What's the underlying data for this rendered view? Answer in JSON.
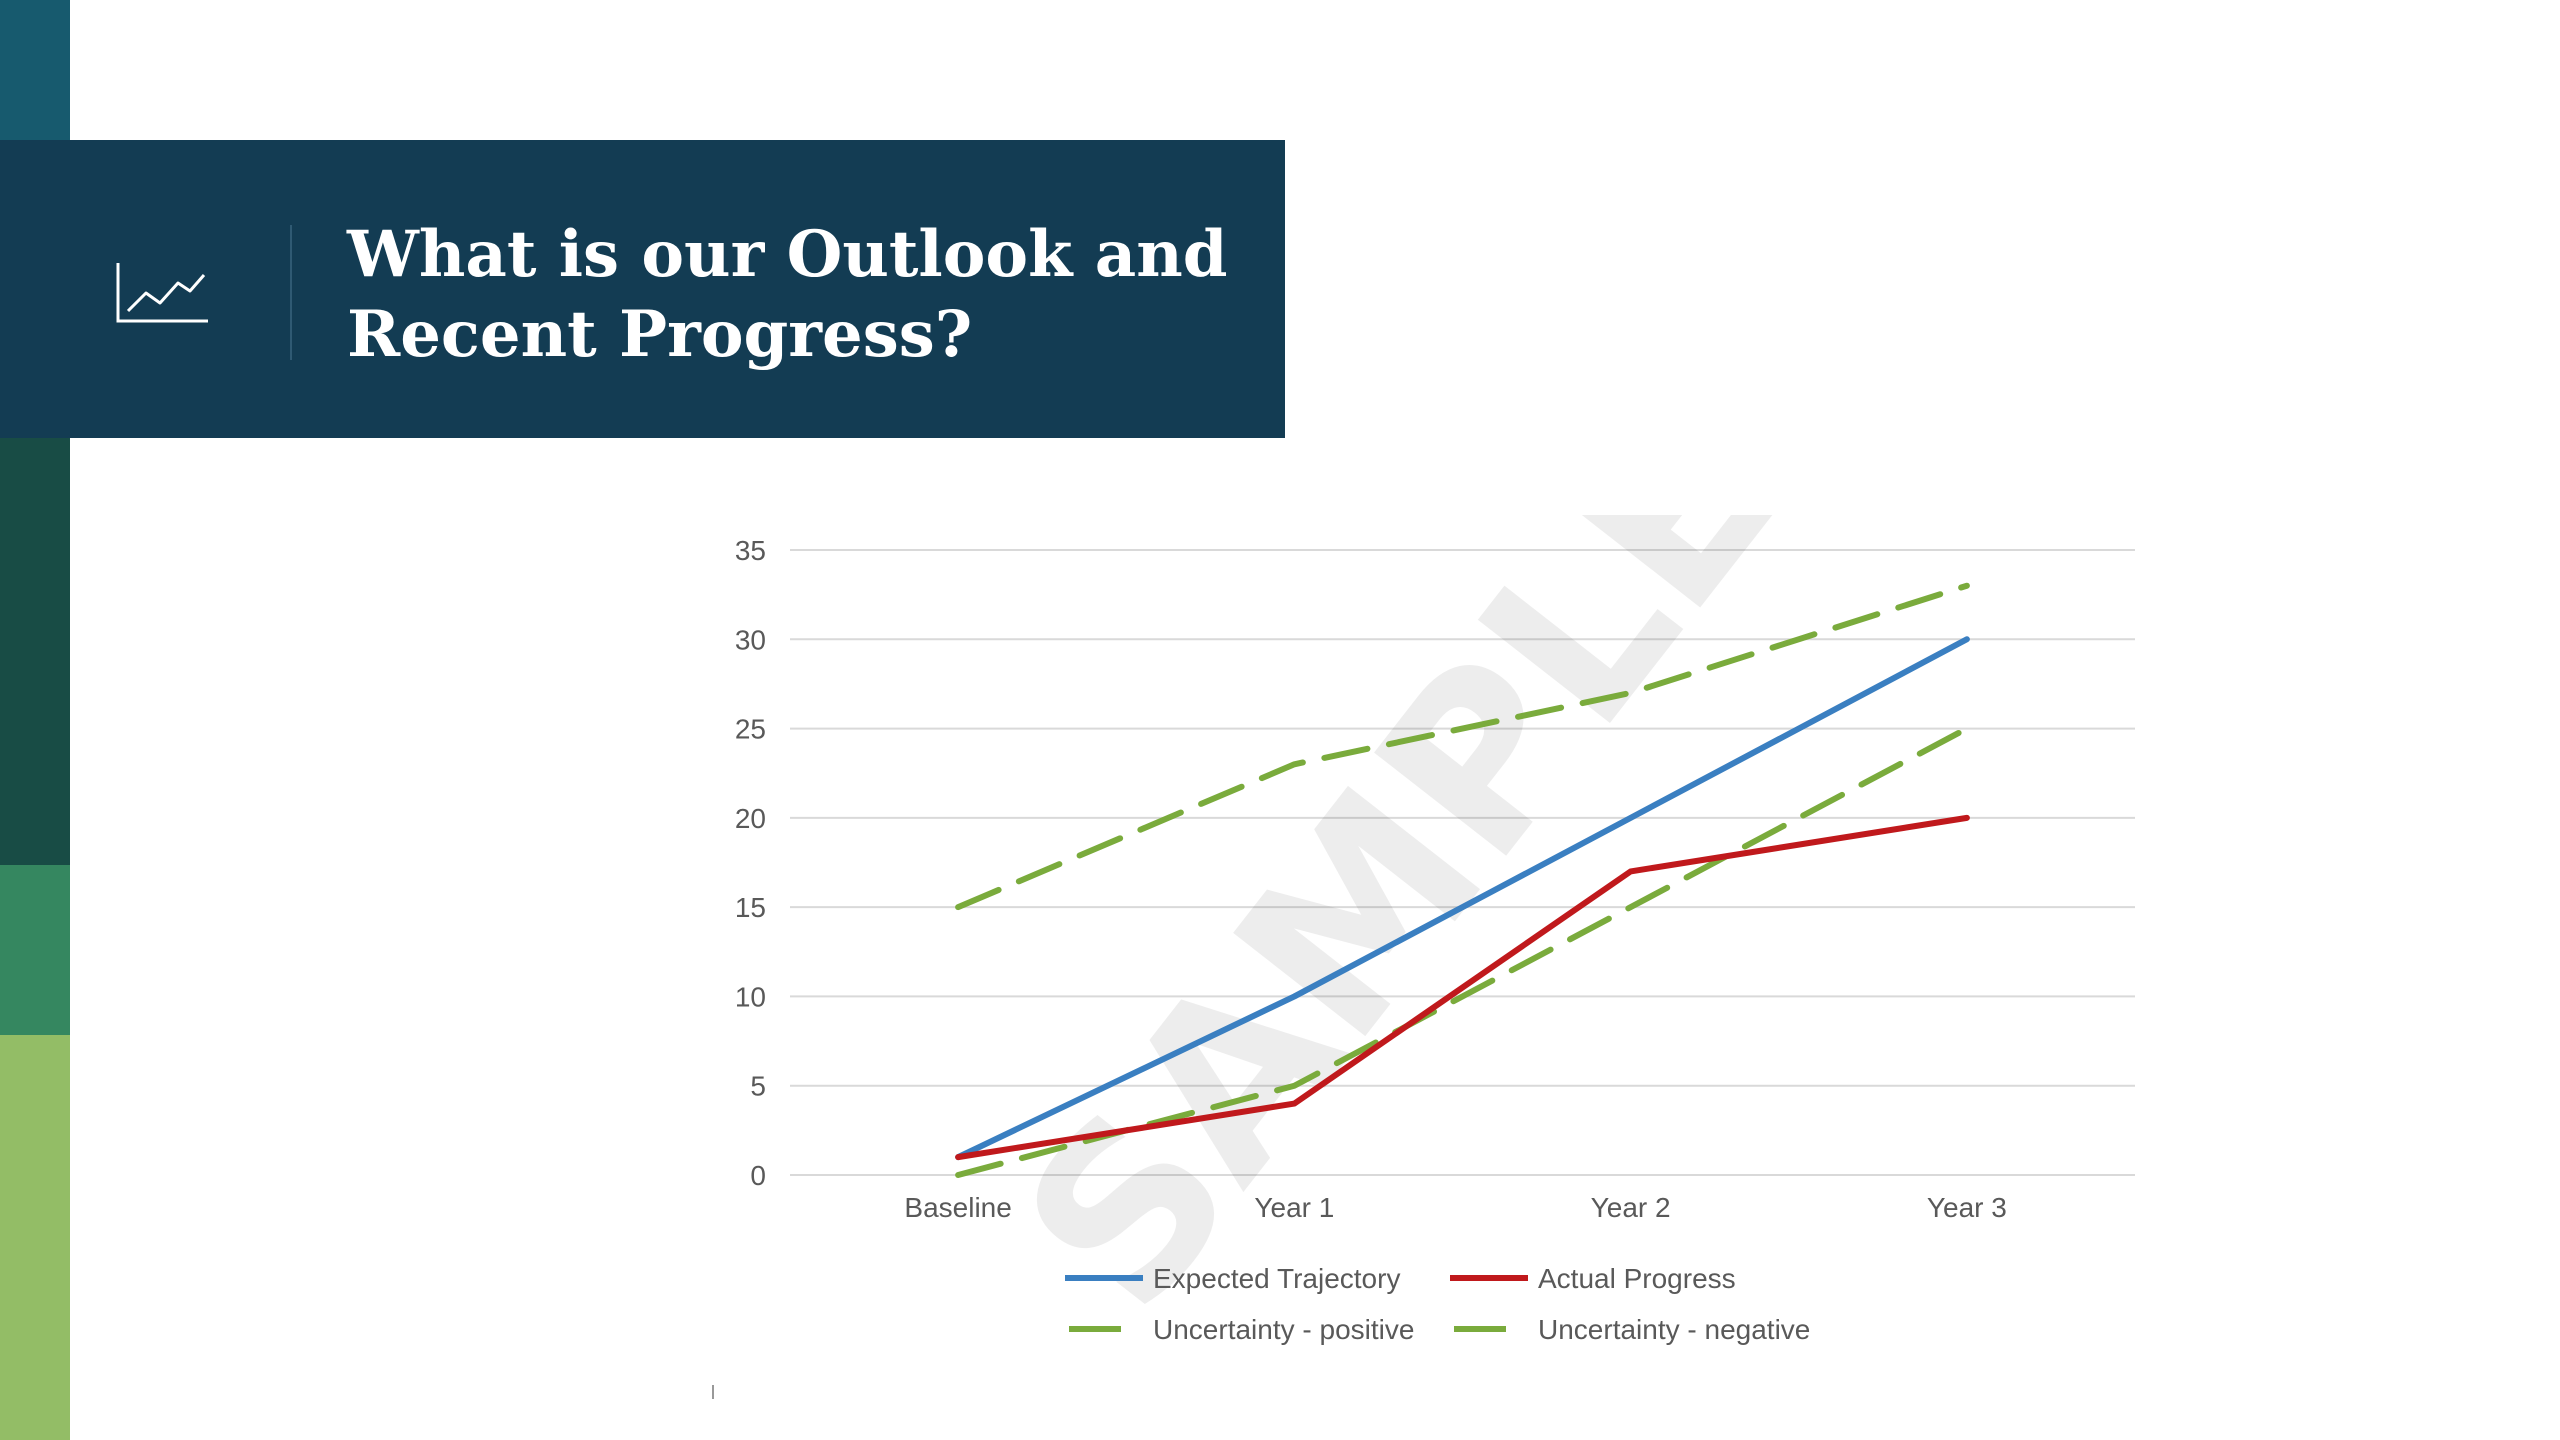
{
  "sidebar": {
    "colors": [
      "#175a6e",
      "#123c53",
      "#184c45",
      "#358760",
      "#93bd66"
    ]
  },
  "header": {
    "background": "#133c53",
    "icon": "line-chart-icon",
    "title_line1": "What is our Outlook and",
    "title_line2": "Recent Progress?"
  },
  "watermark": "SAMPLE",
  "chart_data": {
    "type": "line",
    "categories": [
      "Baseline",
      "Year 1",
      "Year 2",
      "Year 3"
    ],
    "ylim": [
      0,
      35
    ],
    "yticks": [
      "0",
      "5",
      "10",
      "15",
      "20",
      "25",
      "30",
      "35"
    ],
    "grid": true,
    "legend_position": "bottom",
    "series": [
      {
        "name": "Expected Trajectory",
        "values": [
          1,
          10,
          20,
          30
        ],
        "color": "#3a7fc1",
        "dashed": false
      },
      {
        "name": "Actual Progress",
        "values": [
          1,
          4,
          17,
          20
        ],
        "color": "#c0191c",
        "dashed": false
      },
      {
        "name": "Uncertainty - positive",
        "values": [
          15,
          23,
          27,
          33
        ],
        "color": "#7aab3c",
        "dashed": true
      },
      {
        "name": "Uncertainty - negative",
        "values": [
          0,
          5,
          15,
          25
        ],
        "color": "#7aab3c",
        "dashed": true
      }
    ]
  }
}
